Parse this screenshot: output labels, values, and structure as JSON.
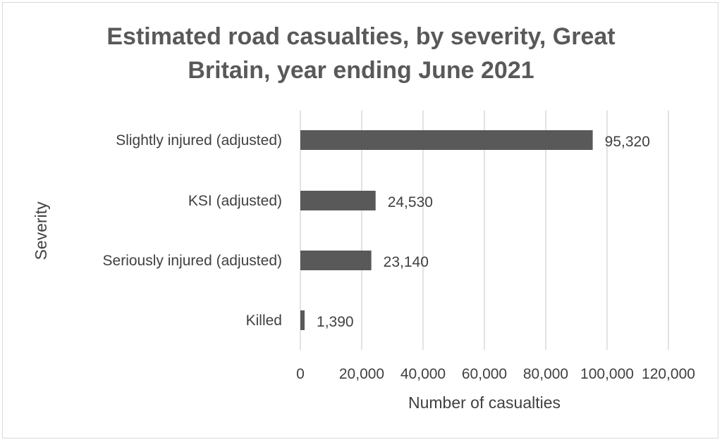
{
  "chart_data": {
    "type": "bar",
    "orientation": "horizontal",
    "title_lines": [
      "Estimated road casualties, by severity, Great",
      "Britain, year ending June 2021"
    ],
    "xlabel": "Number of casualties",
    "ylabel": "Severity",
    "categories": [
      "Slightly injured (adjusted)",
      "KSI (adjusted)",
      "Seriously injured (adjusted)",
      "Killed"
    ],
    "values": [
      95320,
      24530,
      23140,
      1390
    ],
    "data_labels": [
      "95,320",
      "24,530",
      "23,140",
      "1,390"
    ],
    "xlim": [
      0,
      120000
    ],
    "x_ticks": [
      0,
      20000,
      40000,
      60000,
      80000,
      100000,
      120000
    ],
    "x_tick_labels": [
      "0",
      "20,000",
      "40,000",
      "60,000",
      "80,000",
      "100,000",
      "120,000"
    ],
    "grid": "vertical",
    "legend": "none",
    "bar_color": "#595959",
    "grid_color": "#d9d9d9"
  }
}
